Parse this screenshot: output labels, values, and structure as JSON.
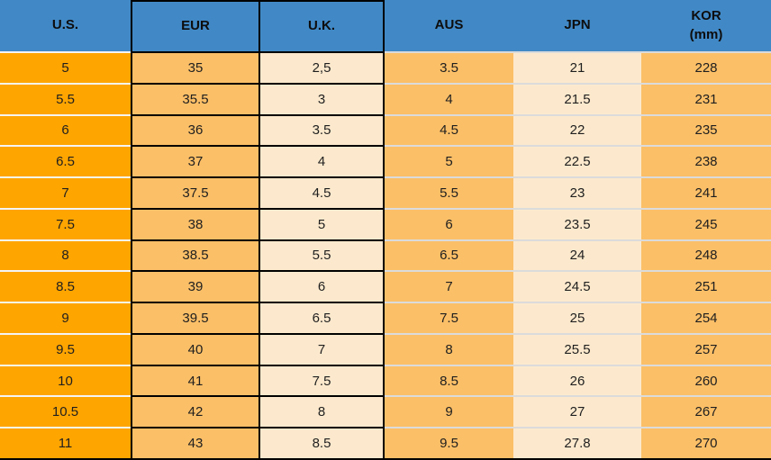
{
  "table": {
    "columns": [
      {
        "label": "U.S."
      },
      {
        "label": "EUR"
      },
      {
        "label": "U.K."
      },
      {
        "label": "AUS"
      },
      {
        "label": "JPN"
      },
      {
        "label": "KOR",
        "sub": "(mm)"
      }
    ],
    "rows": [
      [
        "5",
        "35",
        "2,5",
        "3.5",
        "21",
        "228"
      ],
      [
        "5.5",
        "35.5",
        "3",
        "4",
        "21.5",
        "231"
      ],
      [
        "6",
        "36",
        "3.5",
        "4.5",
        "22",
        "235"
      ],
      [
        "6.5",
        "37",
        "4",
        "5",
        "22.5",
        "238"
      ],
      [
        "7",
        "37.5",
        "4.5",
        "5.5",
        "23",
        "241"
      ],
      [
        "7.5",
        "38",
        "5",
        "6",
        "23.5",
        "245"
      ],
      [
        "8",
        "38.5",
        "5.5",
        "6.5",
        "24",
        "248"
      ],
      [
        "8.5",
        "39",
        "6",
        "7",
        "24.5",
        "251"
      ],
      [
        "9",
        "39.5",
        "6.5",
        "7.5",
        "25",
        "254"
      ],
      [
        "9.5",
        "40",
        "7",
        "8",
        "25.5",
        "257"
      ],
      [
        "10",
        "41",
        "7.5",
        "8.5",
        "26",
        "260"
      ],
      [
        "10.5",
        "42",
        "8",
        "9",
        "27",
        "267"
      ],
      [
        "11",
        "43",
        "8.5",
        "9.5",
        "27.8",
        "270"
      ]
    ]
  },
  "colors": {
    "header_bg": "#4189C6",
    "col_us": "#FFA500",
    "col_orange": "#FBBF67",
    "col_cream": "#FCE9CD"
  },
  "chart_data": {
    "type": "table",
    "title": "Shoe size conversion table",
    "columns": [
      "U.S.",
      "EUR",
      "U.K.",
      "AUS",
      "JPN",
      "KOR (mm)"
    ],
    "rows": [
      [
        "5",
        "35",
        "2,5",
        "3.5",
        "21",
        "228"
      ],
      [
        "5.5",
        "35.5",
        "3",
        "4",
        "21.5",
        "231"
      ],
      [
        "6",
        "36",
        "3.5",
        "4.5",
        "22",
        "235"
      ],
      [
        "6.5",
        "37",
        "4",
        "5",
        "22.5",
        "238"
      ],
      [
        "7",
        "37.5",
        "4.5",
        "5.5",
        "23",
        "241"
      ],
      [
        "7.5",
        "38",
        "5",
        "6",
        "23.5",
        "245"
      ],
      [
        "8",
        "38.5",
        "5.5",
        "6.5",
        "24",
        "248"
      ],
      [
        "8.5",
        "39",
        "6",
        "7",
        "24.5",
        "251"
      ],
      [
        "9",
        "39.5",
        "6.5",
        "7.5",
        "25",
        "254"
      ],
      [
        "9.5",
        "40",
        "7",
        "8",
        "25.5",
        "257"
      ],
      [
        "10",
        "41",
        "7.5",
        "8.5",
        "26",
        "260"
      ],
      [
        "10.5",
        "42",
        "8",
        "9",
        "27",
        "267"
      ],
      [
        "11",
        "43",
        "8.5",
        "9.5",
        "27.8",
        "270"
      ]
    ]
  }
}
